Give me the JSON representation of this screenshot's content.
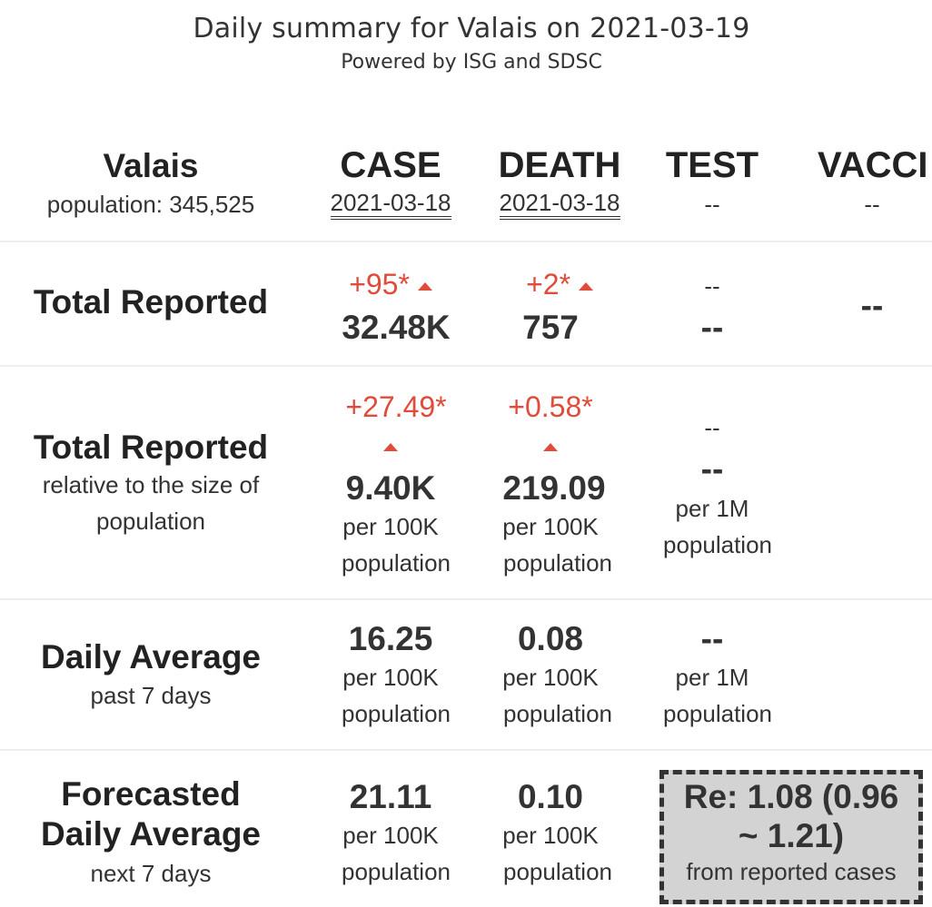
{
  "header": {
    "title": "Daily summary for Valais on 2021-03-19",
    "subtitle": "Powered by ISG and SDSC"
  },
  "region": {
    "name": "Valais",
    "population": "population: 345,525"
  },
  "columns": {
    "case": {
      "label": "CASE",
      "date": "2021-03-18"
    },
    "death": {
      "label": "DEATH",
      "date": "2021-03-18"
    },
    "test": {
      "label": "TEST",
      "date": "--"
    },
    "vaccine": {
      "label": "VACCI",
      "date": "--"
    }
  },
  "rows": {
    "total": {
      "label": "Total Reported",
      "case_change": "+95*",
      "case_value": "32.48K",
      "death_change": "+2*",
      "death_value": "757",
      "test_change": "--",
      "test_value": "--",
      "vaccine_value": "--"
    },
    "relative": {
      "label": "Total Reported",
      "sub1": "relative to the size of",
      "sub2": "population",
      "case_change": "+27.49*",
      "case_value": "9.40K",
      "case_unit1": "per 100K",
      "case_unit2": "population",
      "death_change": "+0.58*",
      "death_value": "219.09",
      "death_unit1": "per 100K",
      "death_unit2": "population",
      "test_change": "--",
      "test_value": "--",
      "test_unit1": "per 1M",
      "test_unit2": "population"
    },
    "daily": {
      "label": "Daily Average",
      "sub": "past 7 days",
      "case_value": "16.25",
      "case_unit1": "per 100K",
      "case_unit2": "population",
      "death_value": "0.08",
      "death_unit1": "per 100K",
      "death_unit2": "population",
      "test_value": "--",
      "test_unit1": "per 1M",
      "test_unit2": "population"
    },
    "forecast": {
      "label1": "Forecasted",
      "label2": "Daily Average",
      "sub": "next 7 days",
      "case_value": "21.11",
      "case_unit1": "per 100K",
      "case_unit2": "population",
      "death_value": "0.10",
      "death_unit1": "per 100K",
      "death_unit2": "population",
      "re_line1": "Re: 1.08 (0.96",
      "re_line2": "~ 1.21)",
      "re_sub": "from reported cases"
    }
  },
  "colors": {
    "increase": "#e04b3a",
    "text": "#333333",
    "re_box_bg": "#d3d3d3"
  }
}
